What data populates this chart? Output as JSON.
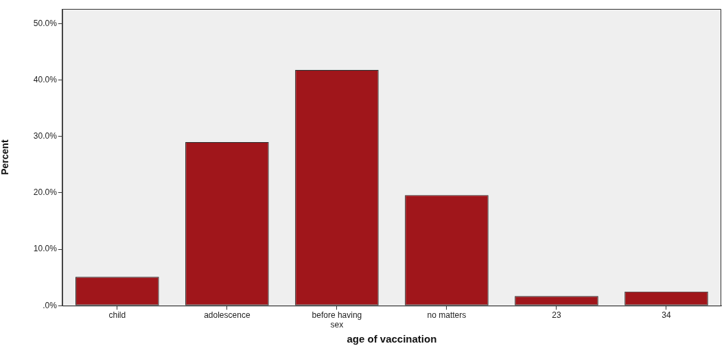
{
  "chart_data": {
    "type": "bar",
    "xlabel": "age of vaccination",
    "ylabel": "Percent",
    "categories": [
      "child",
      "adolescence",
      "before having sex",
      "no matters",
      "23",
      "34"
    ],
    "values": [
      5.1,
      29.0,
      41.8,
      19.6,
      1.7,
      2.5
    ],
    "color": "#a0161b",
    "ylim": [
      0,
      52.6
    ],
    "yticks": [
      {
        "value": 0,
        "label": ".0%"
      },
      {
        "value": 10,
        "label": "10.0%"
      },
      {
        "value": 20,
        "label": "20.0%"
      },
      {
        "value": 30,
        "label": "30.0%"
      },
      {
        "value": 40,
        "label": "40.0%"
      },
      {
        "value": 50,
        "label": "50.0%"
      }
    ],
    "grid": false,
    "legend": false
  }
}
